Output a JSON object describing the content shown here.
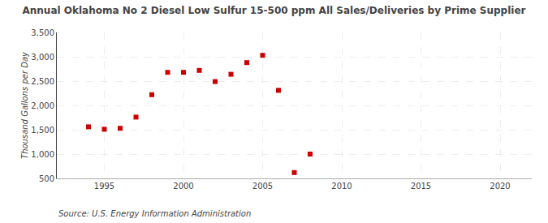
{
  "chart_data": {
    "type": "scatter",
    "title": "Annual Oklahoma No 2 Diesel Low Sulfur 15-500 ppm All Sales/Deliveries by Prime Supplier",
    "ylabel": "Thousand Gallons per Day",
    "annotations": [
      "Source: U.S. Energy Information Administration"
    ],
    "x": [
      1994,
      1995,
      1996,
      1997,
      1998,
      1999,
      2000,
      2001,
      2002,
      2003,
      2004,
      2005,
      2006,
      2007,
      2008
    ],
    "values": [
      1560,
      1510,
      1530,
      1760,
      2220,
      2680,
      2680,
      2720,
      2490,
      2640,
      2880,
      3030,
      2310,
      620,
      1000
    ],
    "color": "#cc0000",
    "marker": "square",
    "xlim": [
      1992,
      2022
    ],
    "ylim": [
      500,
      3500
    ],
    "xticks": [
      1995,
      2000,
      2005,
      2010,
      2015,
      2020
    ],
    "yticks": [
      500,
      {
        "value": 1000,
        "label": "1,000"
      },
      {
        "value": 1500,
        "label": "1,500"
      },
      {
        "value": 2000,
        "label": "2,000"
      },
      {
        "value": 2500,
        "label": "2,500"
      },
      {
        "value": 3000,
        "label": "3,000"
      },
      {
        "value": 3500,
        "label": "3,500"
      }
    ],
    "grid": true
  }
}
